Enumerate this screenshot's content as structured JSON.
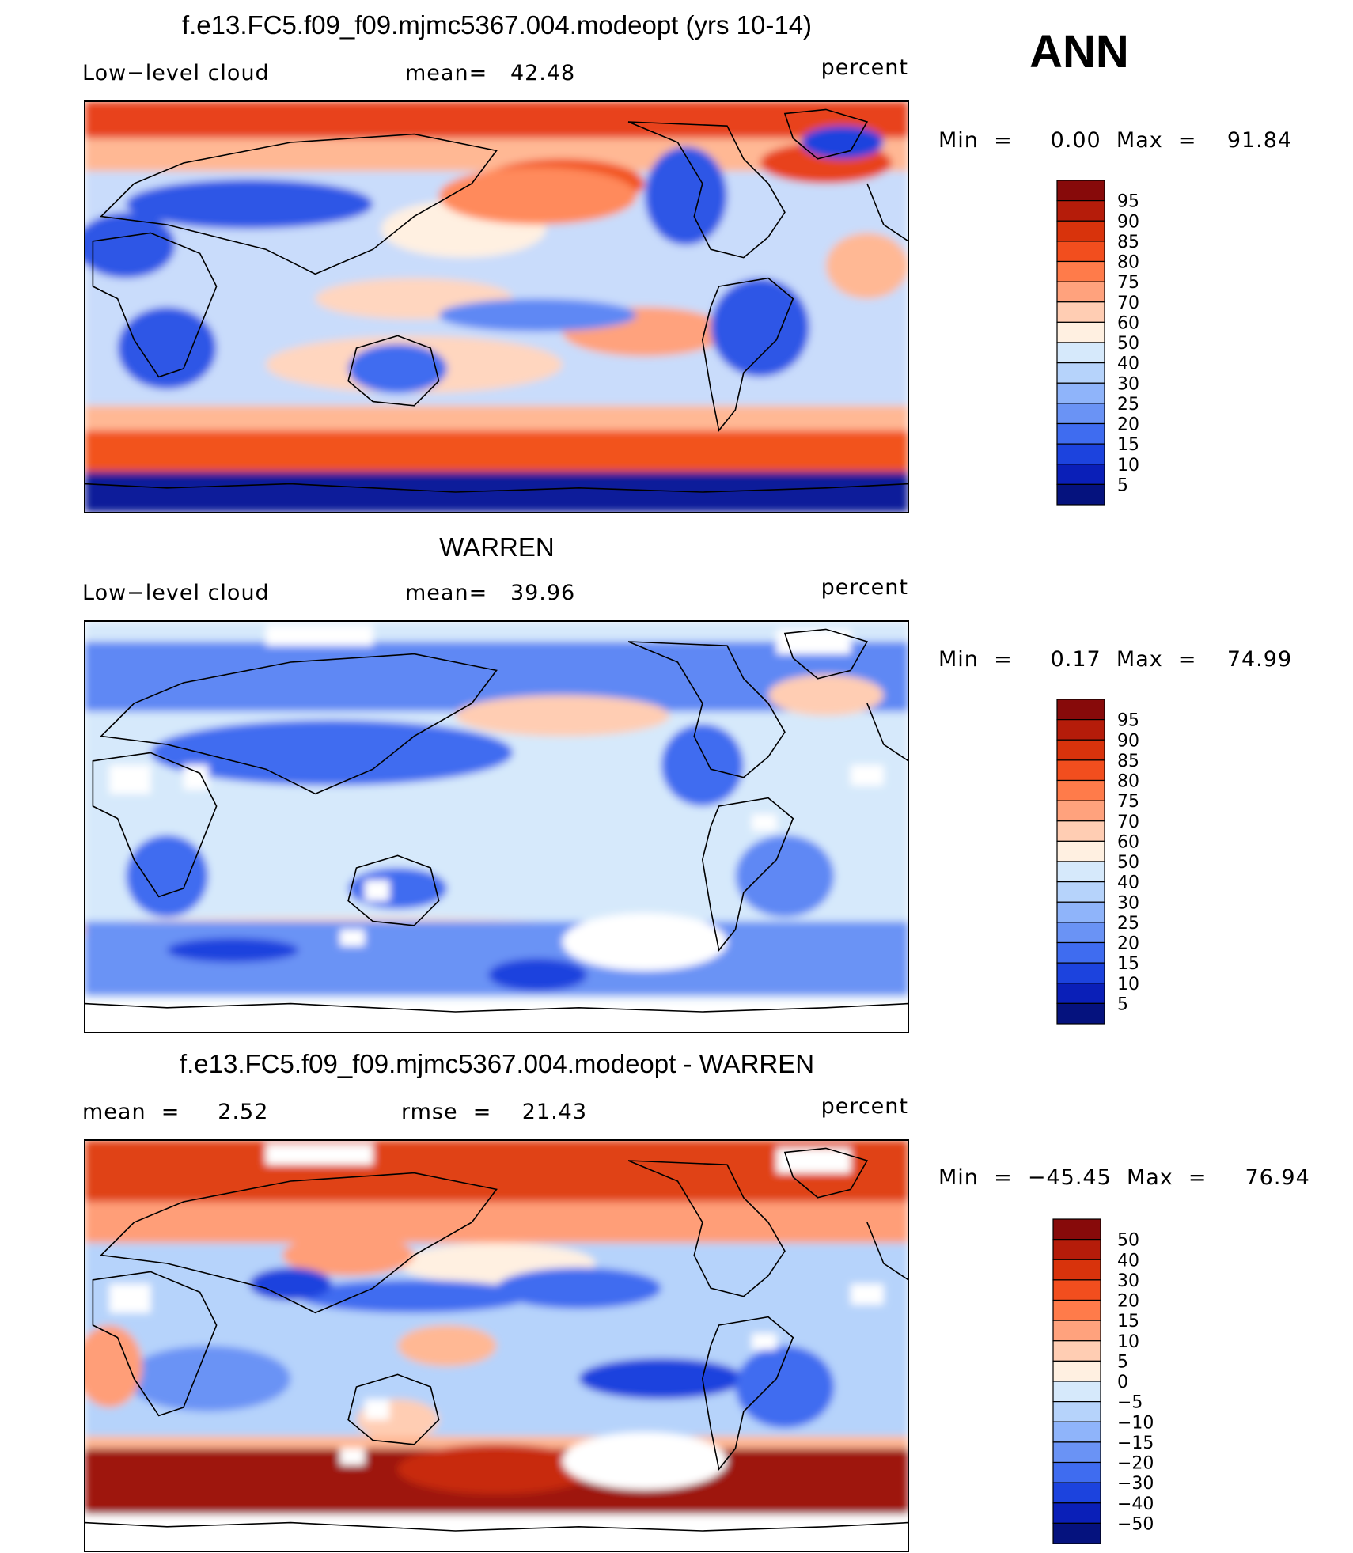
{
  "season": "ANN",
  "panels": [
    {
      "title": "f.e13.FC5.f09_f09.mjmc5367.004.modeopt (yrs 10-14)",
      "left_label": "Low−level cloud",
      "center_label": "mean=   42.48",
      "right_label": "percent",
      "minmax": "Min  =     0.00  Max  =    91.84",
      "colorbar": {
        "labels": [
          "95",
          "90",
          "85",
          "80",
          "75",
          "70",
          "60",
          "50",
          "40",
          "30",
          "25",
          "20",
          "15",
          "10",
          "5"
        ],
        "colors": [
          "#870a0a",
          "#b51c0a",
          "#d8330c",
          "#f24e1e",
          "#ff7b4a",
          "#ffa27d",
          "#ffcdb3",
          "#fff0e1",
          "#d6e9fb",
          "#b6d3fb",
          "#8fb4fa",
          "#6a93f5",
          "#3f6cf0",
          "#1c43de",
          "#0a1fb8",
          "#05127e"
        ]
      },
      "map_kind": "model"
    },
    {
      "title": "WARREN",
      "left_label": "Low−level cloud",
      "center_label": "mean=   39.96",
      "right_label": "percent",
      "minmax": "Min  =     0.17  Max  =    74.99",
      "colorbar": {
        "labels": [
          "95",
          "90",
          "85",
          "80",
          "75",
          "70",
          "60",
          "50",
          "40",
          "30",
          "25",
          "20",
          "15",
          "10",
          "5"
        ],
        "colors": [
          "#870a0a",
          "#b51c0a",
          "#d8330c",
          "#f24e1e",
          "#ff7b4a",
          "#ffa27d",
          "#ffcdb3",
          "#fff0e1",
          "#d6e9fb",
          "#b6d3fb",
          "#8fb4fa",
          "#6a93f5",
          "#3f6cf0",
          "#1c43de",
          "#0a1fb8",
          "#05127e"
        ]
      },
      "map_kind": "obs"
    },
    {
      "title": "f.e13.FC5.f09_f09.mjmc5367.004.modeopt - WARREN",
      "left_label": "mean  =     2.52",
      "center_label": "rmse  =    21.43",
      "right_label": "percent",
      "minmax": "Min  =  −45.45  Max  =     76.94",
      "colorbar": {
        "labels": [
          "50",
          "40",
          "30",
          "20",
          "15",
          "10",
          "5",
          "0",
          "−5",
          "−10",
          "−15",
          "−20",
          "−30",
          "−40",
          "−50"
        ],
        "colors": [
          "#870a0a",
          "#b51c0a",
          "#d8330c",
          "#f24e1e",
          "#ff7b4a",
          "#ffa27d",
          "#ffcdb3",
          "#fff0e1",
          "#d6e9fb",
          "#b6d3fb",
          "#8fb4fa",
          "#6a93f5",
          "#3f6cf0",
          "#1c43de",
          "#0a1fb8",
          "#05127e"
        ]
      },
      "map_kind": "diff"
    }
  ]
}
